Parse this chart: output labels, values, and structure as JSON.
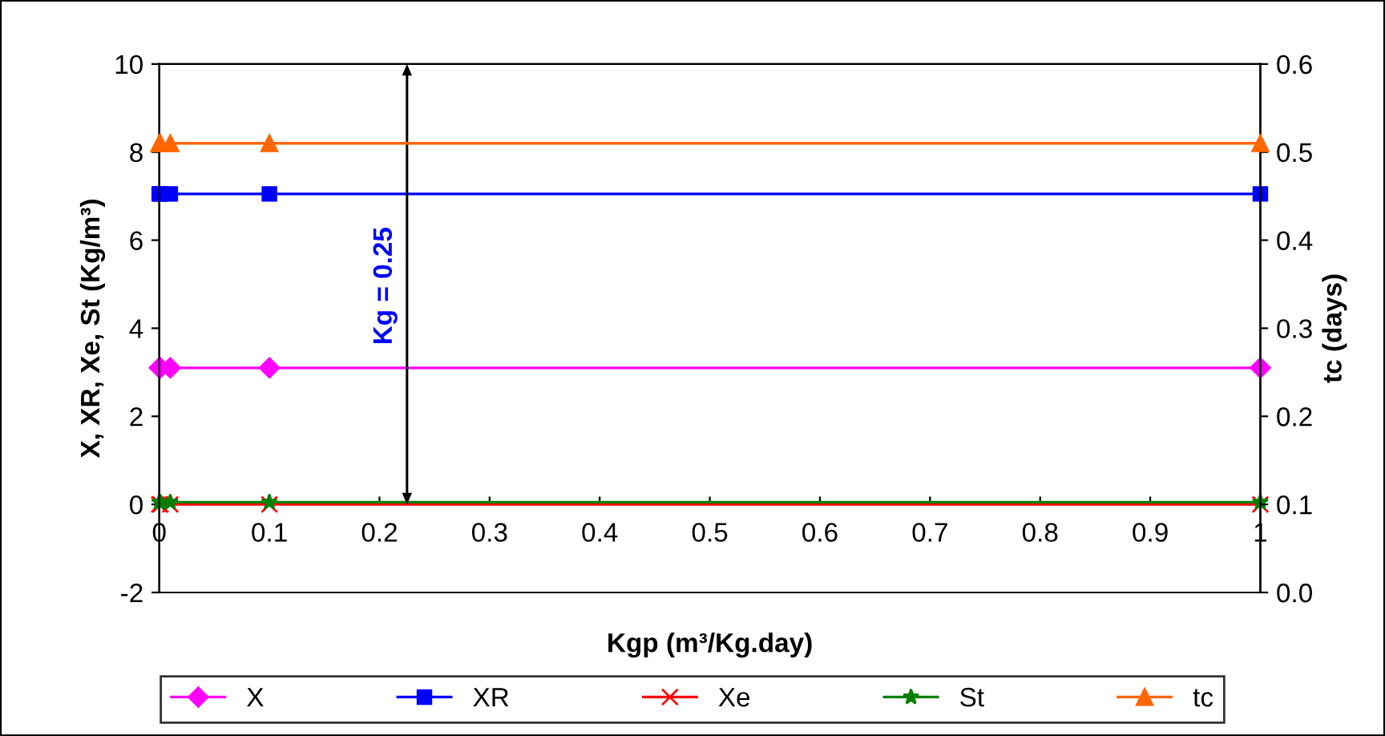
{
  "chart_data": {
    "type": "line",
    "xlabel": "Kgp (m³/Kg.day)",
    "ylabel": "X, XR, Xe, St (Kg/m³)",
    "y2label": "tc (days)",
    "x": [
      0,
      0.001,
      0.01,
      0.1,
      1
    ],
    "xlim": [
      0,
      1
    ],
    "xticks": [
      0,
      0.1,
      0.2,
      0.3,
      0.4,
      0.5,
      0.6,
      0.7,
      0.8,
      0.9,
      1
    ],
    "ylim": [
      -2,
      10
    ],
    "yticks": [
      -2,
      0,
      2,
      4,
      6,
      8,
      10
    ],
    "y2lim": [
      0,
      0.6
    ],
    "y2ticks": [
      {
        "value": 0,
        "label": "0.0"
      },
      0.1,
      0.2,
      0.3,
      0.4,
      0.5,
      0.6
    ],
    "series": [
      {
        "name": "X",
        "color": "#ff00ff",
        "marker": "diamond",
        "values": [
          3.1,
          3.1,
          3.1,
          3.1,
          3.1
        ]
      },
      {
        "name": "XR",
        "color": "#0000ff",
        "marker": "square",
        "values": [
          7.05,
          7.05,
          7.05,
          7.05,
          7.05
        ]
      },
      {
        "name": "Xe",
        "color": "#ff0000",
        "marker": "cross",
        "values": [
          0,
          0,
          0,
          0,
          0
        ]
      },
      {
        "name": "St",
        "color": "#008000",
        "marker": "star",
        "values": [
          0.05,
          0.05,
          0.05,
          0.05,
          0.05
        ]
      },
      {
        "name": "tc",
        "color": "#ff6600",
        "marker": "triangle",
        "axis": "y2",
        "values": [
          0.51,
          0.51,
          0.51,
          0.51,
          0.51
        ]
      }
    ],
    "annotations": [
      "Kg = 0.25"
    ],
    "legend": "bottom",
    "grid": false
  }
}
